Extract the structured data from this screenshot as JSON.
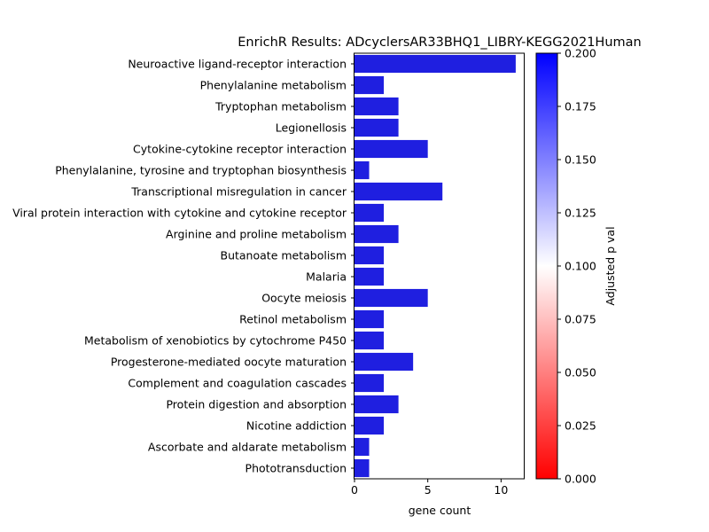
{
  "chart_data": {
    "type": "bar",
    "orientation": "horizontal",
    "title": "EnrichR Results: ADcyclersAR33BHQ1_LIBRY-KEGG2021Human",
    "xlabel": "gene count",
    "ylabel": "",
    "xlim": [
      0,
      11.55
    ],
    "xticks": [
      0,
      5,
      10
    ],
    "grid": false,
    "legend": "none",
    "bar_color": "#1f1fe0",
    "categories": [
      "Neuroactive ligand-receptor interaction",
      "Phenylalanine metabolism",
      "Tryptophan metabolism",
      "Legionellosis",
      "Cytokine-cytokine receptor interaction",
      "Phenylalanine, tyrosine and tryptophan biosynthesis",
      "Transcriptional misregulation in cancer",
      "Viral protein interaction with cytokine and cytokine receptor",
      "Arginine and proline metabolism",
      "Butanoate metabolism",
      "Malaria",
      "Oocyte meiosis",
      "Retinol metabolism",
      "Metabolism of xenobiotics by cytochrome P450",
      "Progesterone-mediated oocyte maturation",
      "Complement and coagulation cascades",
      "Protein digestion and absorption",
      "Nicotine addiction",
      "Ascorbate and aldarate metabolism",
      "Phototransduction"
    ],
    "values": [
      11,
      2,
      3,
      3,
      5,
      1,
      6,
      2,
      3,
      2,
      2,
      5,
      2,
      2,
      4,
      2,
      3,
      2,
      1,
      1
    ],
    "colorbar": {
      "label": "Adjusted p val",
      "range": [
        0,
        0.2
      ],
      "ticks": [
        "0.000",
        "0.025",
        "0.050",
        "0.075",
        "0.100",
        "0.125",
        "0.150",
        "0.175",
        "0.200"
      ],
      "colors": [
        "#ff0000",
        "#ffffff",
        "#0000ff"
      ]
    }
  }
}
